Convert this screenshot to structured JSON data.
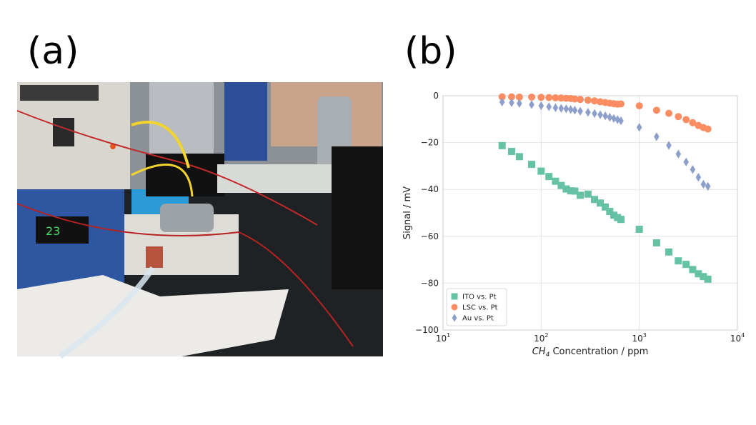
{
  "panels": {
    "a_label": "(a)",
    "b_label": "(b)"
  },
  "chart_data": {
    "type": "scatter",
    "xlabel_main": "CH",
    "xlabel_sub": "4",
    "xlabel_rest": " Concentration / ppm",
    "ylabel": "Signal / mV",
    "xscale": "log",
    "xlim": [
      10,
      10000
    ],
    "ylim": [
      -100,
      0
    ],
    "grid": true,
    "legend_position": "lower-left",
    "x_ticks": [
      {
        "base": "10",
        "exp": "1",
        "value": 10
      },
      {
        "base": "10",
        "exp": "2",
        "value": 100
      },
      {
        "base": "10",
        "exp": "3",
        "value": 1000
      },
      {
        "base": "10",
        "exp": "4",
        "value": 10000
      }
    ],
    "y_ticks": [
      {
        "label": "0",
        "value": 0
      },
      {
        "label": "−20",
        "value": -20
      },
      {
        "label": "−40",
        "value": -40
      },
      {
        "label": "−60",
        "value": -60
      },
      {
        "label": "−80",
        "value": -80
      },
      {
        "label": "−100",
        "value": -100
      }
    ],
    "series": [
      {
        "name": "ITO vs. Pt",
        "marker": "square",
        "color": "#66c2a5",
        "x": [
          40,
          50,
          60,
          80,
          100,
          120,
          140,
          160,
          180,
          200,
          220,
          250,
          300,
          350,
          400,
          450,
          500,
          550,
          600,
          650,
          1000,
          1500,
          2000,
          2500,
          3000,
          3500,
          4000,
          4500,
          5000
        ],
        "y": [
          -21.3,
          -23.8,
          -26,
          -29.3,
          -32.2,
          -34.5,
          -36.5,
          -38.3,
          -39.8,
          -40.6,
          -40.7,
          -42.5,
          -42,
          -44.3,
          -45.8,
          -47.5,
          -49.4,
          -51,
          -52,
          -52.8,
          -57,
          -62.8,
          -66.7,
          -70.5,
          -72,
          -74.2,
          -76,
          -77.2,
          -78.3
        ]
      },
      {
        "name": "LSC vs. Pt",
        "marker": "circle",
        "color": "#fc8d62",
        "x": [
          40,
          50,
          60,
          80,
          100,
          120,
          140,
          160,
          180,
          200,
          220,
          250,
          300,
          350,
          400,
          450,
          500,
          550,
          600,
          650,
          1000,
          1500,
          2000,
          2500,
          3000,
          3500,
          4000,
          4500,
          5000
        ],
        "y": [
          -0.5,
          -0.5,
          -0.6,
          -0.6,
          -0.7,
          -0.8,
          -0.9,
          -1.0,
          -1.1,
          -1.2,
          -1.4,
          -1.6,
          -1.9,
          -2.2,
          -2.6,
          -2.9,
          -3.2,
          -3.4,
          -3.6,
          -3.5,
          -4.3,
          -6.2,
          -7.5,
          -8.9,
          -10.2,
          -11.5,
          -12.7,
          -13.6,
          -14.2
        ]
      },
      {
        "name": "Au vs. Pt",
        "marker": "diamond",
        "color": "#8da0cb",
        "x": [
          40,
          50,
          60,
          80,
          100,
          120,
          140,
          160,
          180,
          200,
          220,
          250,
          300,
          350,
          400,
          450,
          500,
          550,
          600,
          650,
          1000,
          1500,
          2000,
          2500,
          3000,
          3500,
          4000,
          4500,
          5000
        ],
        "y": [
          -2.7,
          -3.0,
          -3.3,
          -3.8,
          -4.3,
          -4.7,
          -5.1,
          -5.4,
          -5.6,
          -5.9,
          -6.2,
          -6.6,
          -7.1,
          -7.6,
          -8.1,
          -8.6,
          -9.2,
          -9.7,
          -10.2,
          -10.7,
          -13.5,
          -17.5,
          -21.2,
          -24.9,
          -28.3,
          -31.5,
          -34.8,
          -37.8,
          -38.7
        ]
      }
    ]
  }
}
